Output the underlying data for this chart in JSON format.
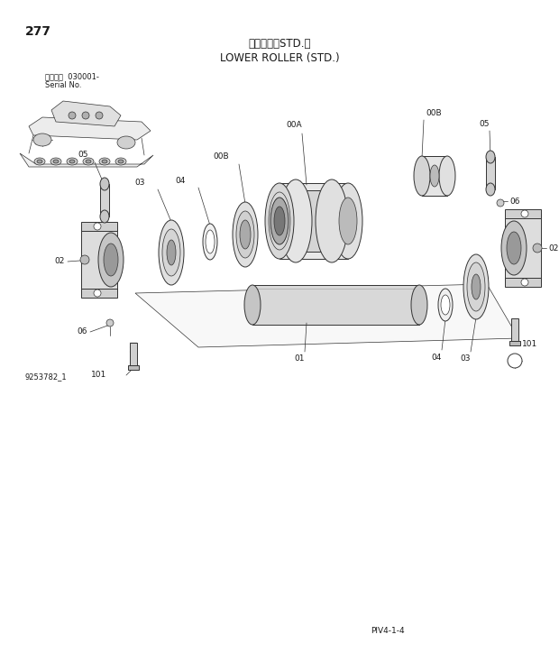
{
  "page_number": "277",
  "title_japanese": "下ローラ（STD.）",
  "title_english": "LOWER ROLLER (STD.)",
  "serial_info_line1": "適用号機  030001-",
  "serial_info_line2": "Serial No.",
  "part_number": "9253782_1",
  "page_code": "PIV4-1-4",
  "bg_color": "#ffffff",
  "line_color": "#333333",
  "text_color": "#1a1a1a",
  "font_size_title_jp": 8.5,
  "font_size_title_en": 8.5,
  "font_size_label": 6.5,
  "font_size_small": 6.0,
  "font_size_page": 6.5,
  "font_size_277": 10
}
